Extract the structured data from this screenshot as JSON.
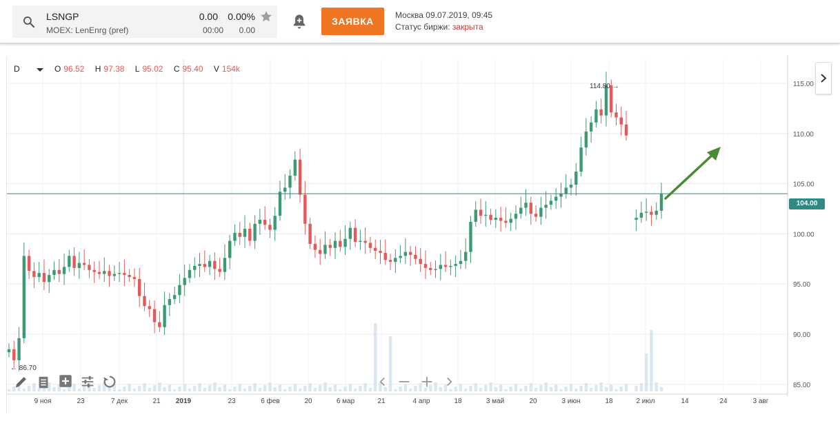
{
  "ticker": {
    "symbol": "LSNGP",
    "exchange": "MOEX: LenEnrg (pref)",
    "price": "0.00",
    "change_pct": "0.00%",
    "time": "00:00",
    "change_abs": "0.00"
  },
  "order_button": {
    "label": "ЗАЯВКА"
  },
  "market": {
    "datetime": "Москва 09.07.2019, 09:45",
    "status_label": "Статус биржи: ",
    "status_value": "закрыта"
  },
  "colors": {
    "accent": "#ee7623",
    "up": "#3d9a72",
    "down": "#e25a5a",
    "price_line": "#2e8a82",
    "status_closed": "#e0302c",
    "arrow": "#4a8a34"
  },
  "chart_header": {
    "interval": "D",
    "o_label": "O",
    "o_value": "96.52",
    "h_label": "H",
    "h_value": "97.38",
    "l_label": "L",
    "l_value": "95.02",
    "c_label": "C",
    "c_value": "95.40",
    "v_label": "V",
    "v_value": "154k"
  },
  "current_price_label": "104.00",
  "toolbar_icons": [
    "pencil-icon",
    "list-icon",
    "add-indicator-icon",
    "settings-sliders-icon",
    "undo-icon"
  ],
  "nav_icons": [
    "chevron-left-icon",
    "zoom-out-icon",
    "zoom-in-icon",
    "chevron-right-icon"
  ],
  "chart_data": {
    "type": "candlestick",
    "y_ticks": [
      "115.00",
      "110.00",
      "105.00",
      "100.00",
      "95.00",
      "90.00",
      "85.00"
    ],
    "ylim": [
      84.3,
      117.4
    ],
    "x_ticks": [
      "9 ноя",
      "23",
      "7 дек",
      "21",
      "2019",
      "23",
      "6 фев",
      "20",
      "6 мар",
      "21",
      "4 апр",
      "18",
      "3 май",
      "20",
      "3 июн",
      "18",
      "2 июл",
      "14",
      "24",
      "3 авг"
    ],
    "max_annotation": "114.80",
    "min_annotation": "86.70",
    "current_price": 104.0,
    "grid": true
  }
}
